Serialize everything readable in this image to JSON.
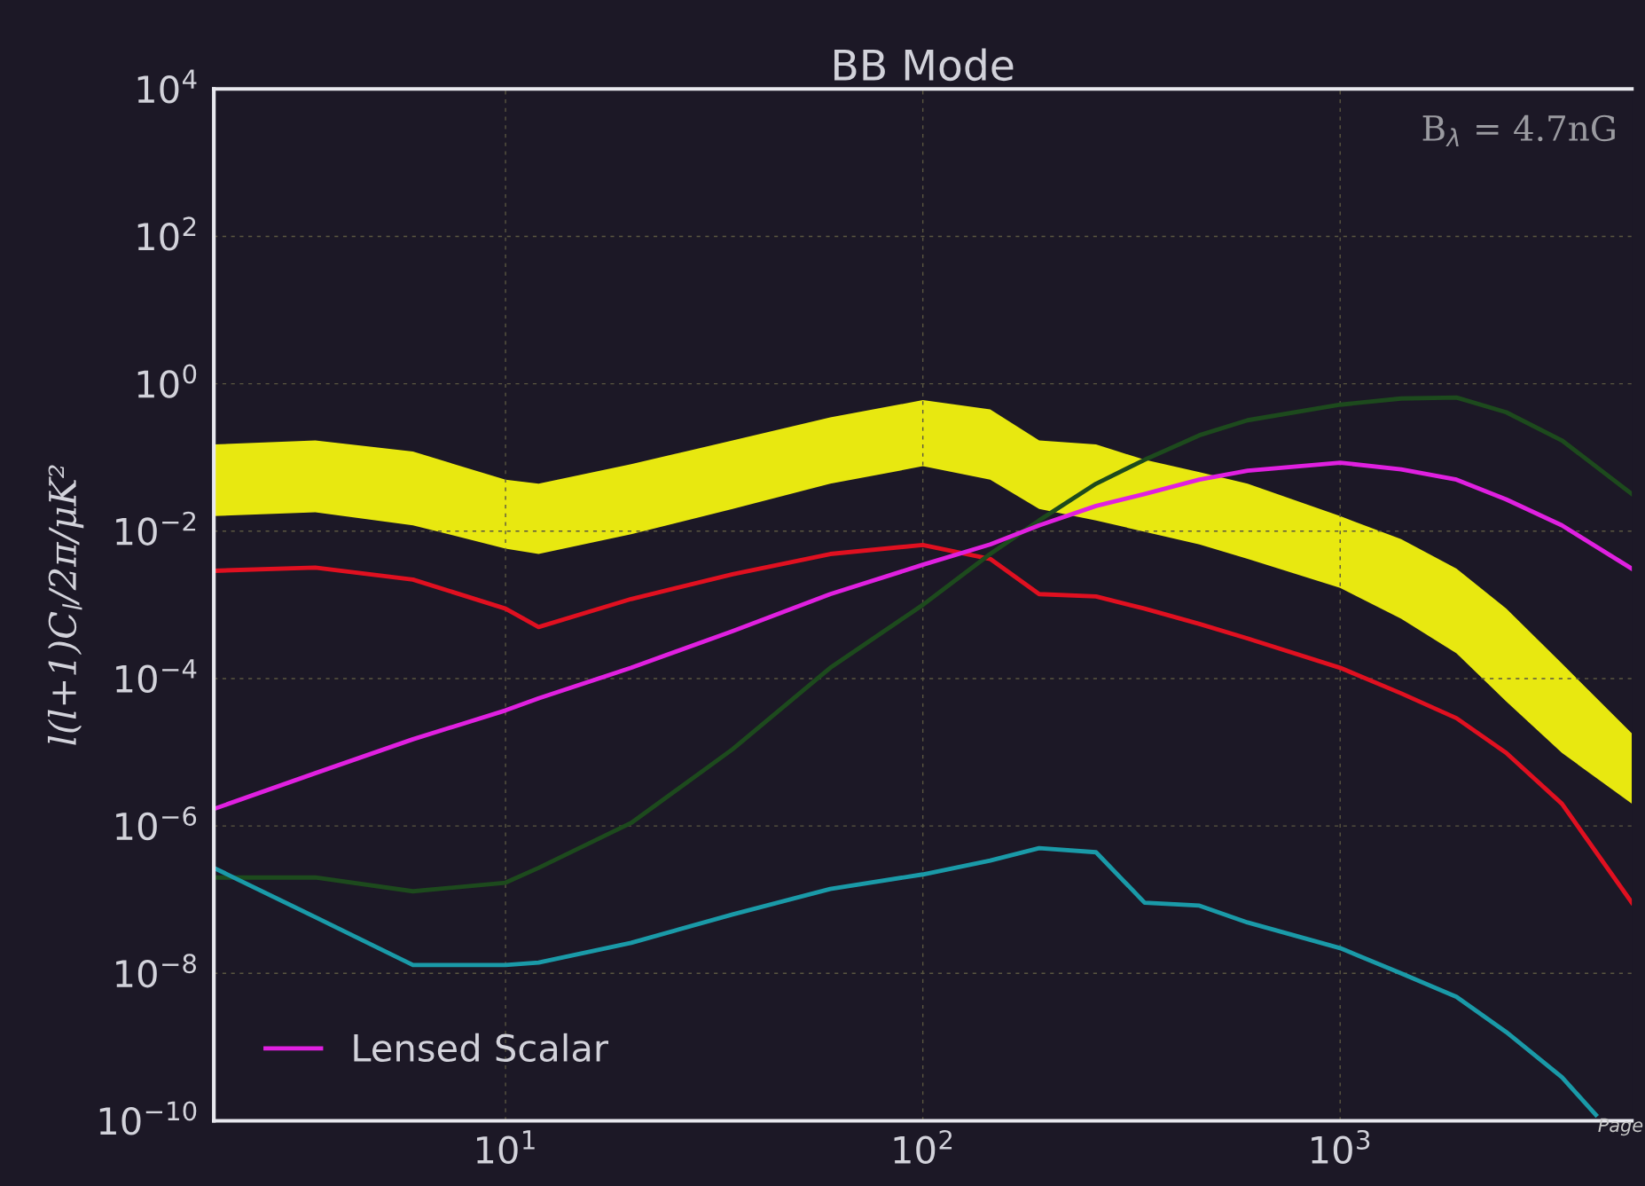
{
  "chart_data": {
    "type": "line",
    "title": "BB Mode",
    "ylabel": "l(l+1)C$_{l}$/2π/μK²",
    "annotations": [
      "B$_{λ}$ = 4.7nG",
      "Page"
    ],
    "x": [
      2,
      3.5,
      6,
      10,
      12,
      20,
      35,
      60,
      100,
      145,
      190,
      260,
      340,
      460,
      600,
      1000,
      1400,
      1900,
      2500,
      3400,
      5000
    ],
    "series": [
      {
        "color": "#e8e810",
        "values": [
          null,
          null,
          null,
          null,
          null,
          null,
          null,
          null,
          null,
          null,
          null,
          null,
          null,
          null,
          null,
          null,
          null,
          null,
          null,
          null,
          null
        ],
        "lower": [
          0.016,
          0.018,
          0.012,
          0.0058,
          0.0049,
          0.0091,
          0.02,
          0.044,
          0.076,
          0.05,
          0.02,
          0.014,
          0.0098,
          0.0066,
          0.0042,
          0.0017,
          0.00065,
          0.00022,
          4.9e-05,
          9.8e-06,
          2e-06
        ],
        "upper": [
          0.15,
          0.17,
          0.12,
          0.05,
          0.044,
          0.081,
          0.17,
          0.35,
          0.6,
          0.45,
          0.17,
          0.15,
          0.093,
          0.063,
          0.044,
          0.016,
          0.0078,
          0.0031,
          0.00089,
          0.00016,
          1.8e-05
        ]
      },
      {
        "color": "#e01020",
        "values": [
          0.0029,
          0.0032,
          0.0022,
          0.00089,
          0.0005,
          0.0012,
          0.0026,
          0.0049,
          0.0065,
          0.0042,
          0.0014,
          0.0013,
          0.00089,
          0.00055,
          0.00035,
          0.00014,
          6.3e-05,
          2.9e-05,
          9.8e-06,
          2e-06,
          9.1e-08
        ]
      },
      {
        "color": "#1d4a1d",
        "values": [
          2e-07,
          2e-07,
          1.3e-07,
          1.7e-07,
          2.7e-07,
          1.1e-06,
          1.1e-05,
          0.00014,
          0.001,
          0.0049,
          0.014,
          0.044,
          0.093,
          0.2,
          0.32,
          0.52,
          0.63,
          0.65,
          0.41,
          0.17,
          0.032
        ]
      },
      {
        "color": "#1a9aa8",
        "x": [
          2,
          3.5,
          6,
          10,
          12,
          20,
          35,
          60,
          100,
          145,
          190,
          260,
          340,
          460,
          600,
          1000,
          1400,
          1900,
          2500,
          3400,
          4100
        ],
        "values": [
          2.7e-07,
          5.8e-08,
          1.3e-08,
          1.3e-08,
          1.4e-08,
          2.6e-08,
          6.3e-08,
          1.4e-07,
          2.2e-07,
          3.4e-07,
          5e-07,
          4.4e-07,
          9.1e-08,
          8.3e-08,
          4.9e-08,
          2.2e-08,
          1e-08,
          4.8e-09,
          1.6e-09,
          3.9e-10,
          1.2e-10
        ]
      },
      {
        "name": "Lensed Scalar",
        "color": "#e020e0",
        "values": [
          1.7e-06,
          5.2e-06,
          1.5e-05,
          3.7e-05,
          5.4e-05,
          0.00014,
          0.00044,
          0.0014,
          0.0035,
          0.0066,
          0.012,
          0.022,
          0.032,
          0.05,
          0.066,
          0.085,
          0.069,
          0.05,
          0.027,
          0.012,
          0.0031
        ]
      }
    ],
    "log": "xy",
    "xlim": [
      2,
      5000
    ],
    "ylim": [
      1e-10,
      10000.0
    ],
    "xticks": [
      {
        "value": 10,
        "label": "10$^{1}$"
      },
      {
        "value": 100,
        "label": "10$^{2}$"
      },
      {
        "value": 1000,
        "label": "10$^{3}$"
      }
    ],
    "yticks": [
      {
        "value": 1e-10,
        "label": "10$^{−10}$"
      },
      {
        "value": 1e-08,
        "label": "10$^{−8}$"
      },
      {
        "value": 1e-06,
        "label": "10$^{−6}$"
      },
      {
        "value": 0.0001,
        "label": "10$^{−4}$"
      },
      {
        "value": 0.01,
        "label": "10$^{−2}$"
      },
      {
        "value": 1,
        "label": "10$^{0}$"
      },
      {
        "value": 100,
        "label": "10$^{2}$"
      },
      {
        "value": 10000,
        "label": "10$^{4}$"
      }
    ],
    "grid": true,
    "legend": "bottom left",
    "line_style": "solid",
    "marker": "none"
  }
}
